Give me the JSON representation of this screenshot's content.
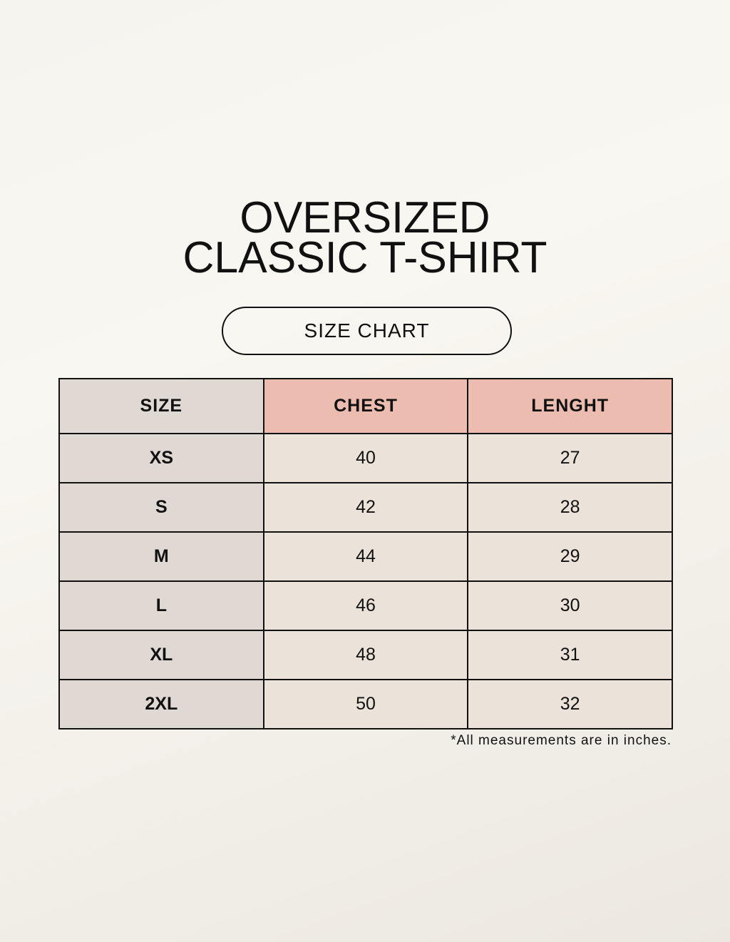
{
  "title": {
    "line1": "OVERSIZED",
    "line2": "CLASSIC T-SHIRT"
  },
  "subtitle": "SIZE CHART",
  "table": {
    "headers": [
      "SIZE",
      "CHEST",
      "LENGHT"
    ],
    "rows": [
      [
        "XS",
        "40",
        "27"
      ],
      [
        "S",
        "42",
        "28"
      ],
      [
        "M",
        "44",
        "29"
      ],
      [
        "L",
        "46",
        "30"
      ],
      [
        "XL",
        "48",
        "31"
      ],
      [
        "2XL",
        "50",
        "32"
      ]
    ]
  },
  "note": "*All measurements are in inches.",
  "colors": {
    "size_column": "#e0d8d3",
    "header_accent": "#edbcb0",
    "cell": "#ebe3d9"
  }
}
